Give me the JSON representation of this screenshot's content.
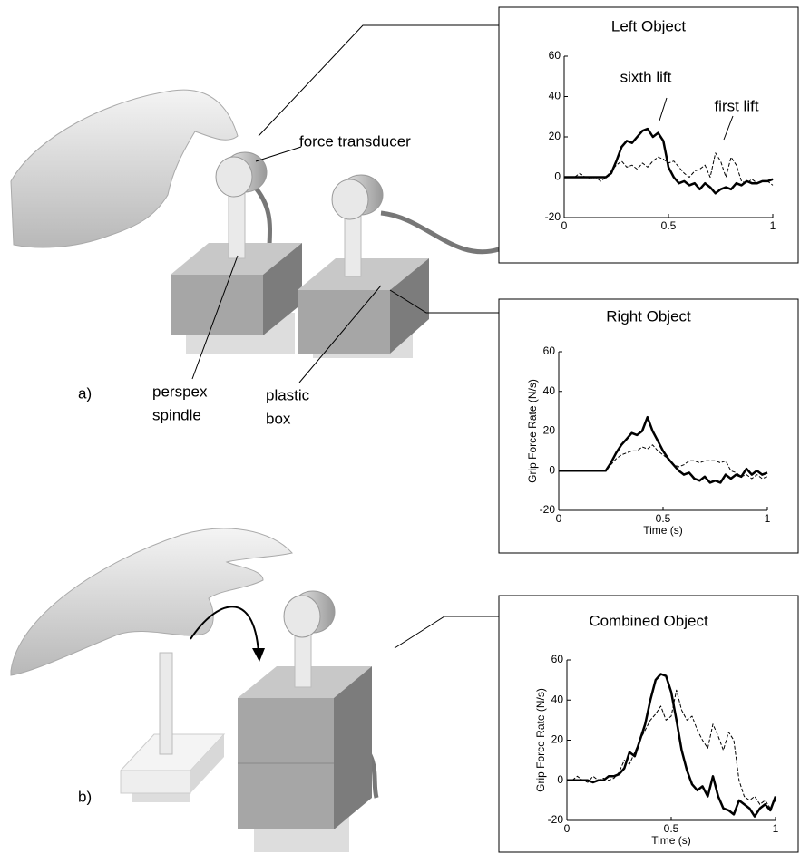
{
  "chart_data": [
    {
      "type": "line",
      "title": "Left Object",
      "x": [
        0,
        0.025,
        0.05,
        0.075,
        0.1,
        0.125,
        0.15,
        0.175,
        0.2,
        0.225,
        0.25,
        0.275,
        0.3,
        0.325,
        0.35,
        0.375,
        0.4,
        0.425,
        0.45,
        0.475,
        0.5,
        0.525,
        0.55,
        0.575,
        0.6,
        0.625,
        0.65,
        0.675,
        0.7,
        0.725,
        0.75,
        0.775,
        0.8,
        0.825,
        0.85,
        0.875,
        0.9,
        0.925,
        0.95,
        0.975,
        1
      ],
      "xlim": [
        0,
        1
      ],
      "xticks": [
        0,
        0.5,
        1
      ],
      "ylim": [
        -20,
        60
      ],
      "yticks": [
        -20,
        0,
        20,
        40,
        60
      ],
      "series": [
        {
          "color": "#000000",
          "style": "solid",
          "values": [
            0,
            0,
            0,
            0,
            0,
            0,
            0,
            0,
            0,
            2,
            8,
            15,
            18,
            17,
            20,
            23,
            24,
            20,
            22,
            18,
            5,
            0,
            -3,
            -2,
            -4,
            -3,
            -6,
            -3,
            -5,
            -8,
            -6,
            -5,
            -6,
            -3,
            -4,
            -2,
            -3,
            -3,
            -2,
            -2,
            -1
          ]
        },
        {
          "color": "#000000",
          "style": "dashed",
          "values": [
            0,
            0,
            0,
            2,
            0,
            -1,
            0,
            -2,
            0,
            3,
            6,
            8,
            5,
            6,
            4,
            7,
            5,
            8,
            10,
            9,
            7,
            8,
            5,
            2,
            0,
            3,
            4,
            6,
            0,
            12,
            8,
            0,
            10,
            6,
            -2,
            -3,
            -1,
            -3,
            -2,
            -2,
            -4
          ]
        }
      ],
      "annotations": [
        "sixth lift",
        "first lift"
      ]
    },
    {
      "type": "line",
      "title": "Right Object",
      "xlabel": "Time (s)",
      "ylabel": "Grip Force Rate (N/s)",
      "x": [
        0,
        0.025,
        0.05,
        0.075,
        0.1,
        0.125,
        0.15,
        0.175,
        0.2,
        0.225,
        0.25,
        0.275,
        0.3,
        0.325,
        0.35,
        0.375,
        0.4,
        0.425,
        0.45,
        0.475,
        0.5,
        0.525,
        0.55,
        0.575,
        0.6,
        0.625,
        0.65,
        0.675,
        0.7,
        0.725,
        0.75,
        0.775,
        0.8,
        0.825,
        0.85,
        0.875,
        0.9,
        0.925,
        0.95,
        0.975,
        1
      ],
      "xlim": [
        0,
        1
      ],
      "xticks": [
        0,
        0.5,
        1
      ],
      "ylim": [
        -20,
        60
      ],
      "yticks": [
        -20,
        0,
        20,
        40,
        60
      ],
      "series": [
        {
          "color": "#000000",
          "style": "solid",
          "values": [
            0,
            0,
            0,
            0,
            0,
            0,
            0,
            0,
            0,
            0,
            4,
            9,
            13,
            16,
            19,
            18,
            20,
            27,
            20,
            15,
            10,
            6,
            3,
            0,
            -2,
            -1,
            -4,
            -5,
            -3,
            -6,
            -5,
            -6,
            -2,
            -4,
            -2,
            -3,
            1,
            -2,
            0,
            -2,
            -1
          ]
        },
        {
          "color": "#000000",
          "style": "dashed",
          "values": [
            0,
            0,
            0,
            0,
            0,
            0,
            0,
            0,
            0,
            0,
            3,
            6,
            8,
            9,
            10,
            10,
            12,
            11,
            13,
            10,
            8,
            6,
            3,
            2,
            3,
            5,
            5,
            4,
            5,
            5,
            5,
            4,
            5,
            0,
            -1,
            -3,
            -2,
            -4,
            -2,
            -4,
            -3
          ]
        }
      ]
    },
    {
      "type": "line",
      "title": "Combined Object",
      "xlabel": "Time (s)",
      "ylabel": "Grip Force Rate (N/s)",
      "x": [
        0,
        0.025,
        0.05,
        0.075,
        0.1,
        0.125,
        0.15,
        0.175,
        0.2,
        0.225,
        0.25,
        0.275,
        0.3,
        0.325,
        0.35,
        0.375,
        0.4,
        0.425,
        0.45,
        0.475,
        0.5,
        0.525,
        0.55,
        0.575,
        0.6,
        0.625,
        0.65,
        0.675,
        0.7,
        0.725,
        0.75,
        0.775,
        0.8,
        0.825,
        0.85,
        0.875,
        0.9,
        0.925,
        0.95,
        0.975,
        1
      ],
      "xlim": [
        0,
        1
      ],
      "xticks": [
        0,
        0.5,
        1
      ],
      "ylim": [
        -20,
        60
      ],
      "yticks": [
        -20,
        0,
        20,
        40,
        60
      ],
      "series": [
        {
          "color": "#000000",
          "style": "solid",
          "values": [
            0,
            0,
            0,
            0,
            0,
            -1,
            0,
            0,
            2,
            2,
            3,
            6,
            14,
            12,
            20,
            28,
            40,
            50,
            53,
            52,
            44,
            30,
            15,
            5,
            -2,
            -5,
            -3,
            -8,
            2,
            -8,
            -14,
            -15,
            -17,
            -10,
            -12,
            -14,
            -18,
            -14,
            -12,
            -15,
            -8
          ]
        },
        {
          "color": "#000000",
          "style": "dashed",
          "values": [
            0,
            0,
            2,
            0,
            -1,
            2,
            0,
            1,
            0,
            1,
            4,
            10,
            8,
            14,
            20,
            25,
            30,
            33,
            37,
            30,
            32,
            45,
            35,
            30,
            32,
            25,
            20,
            16,
            28,
            22,
            15,
            24,
            20,
            0,
            -8,
            -10,
            -8,
            -12,
            -10,
            -14,
            -10
          ]
        }
      ]
    }
  ],
  "illustration": {
    "force_transducer": "force transducer",
    "perspex_spindle": [
      "perspex",
      "spindle"
    ],
    "plastic_box": [
      "plastic",
      "box"
    ],
    "panel_a": "a)",
    "panel_b": "b)"
  }
}
